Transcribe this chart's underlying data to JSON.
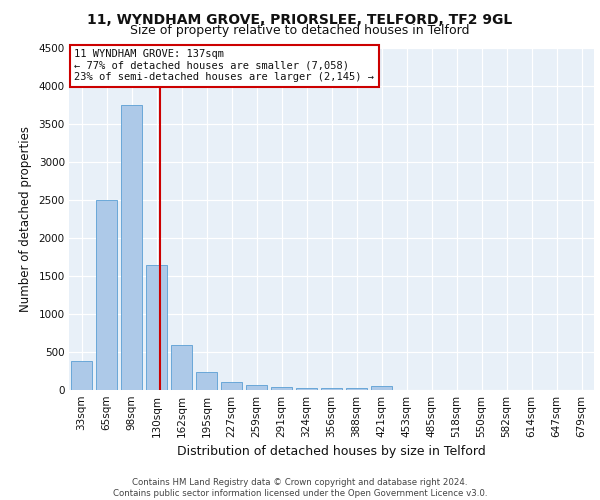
{
  "title1": "11, WYNDHAM GROVE, PRIORSLEE, TELFORD, TF2 9GL",
  "title2": "Size of property relative to detached houses in Telford",
  "xlabel": "Distribution of detached houses by size in Telford",
  "ylabel": "Number of detached properties",
  "categories": [
    "33sqm",
    "65sqm",
    "98sqm",
    "130sqm",
    "162sqm",
    "195sqm",
    "227sqm",
    "259sqm",
    "291sqm",
    "324sqm",
    "356sqm",
    "388sqm",
    "421sqm",
    "453sqm",
    "485sqm",
    "518sqm",
    "550sqm",
    "582sqm",
    "614sqm",
    "647sqm",
    "679sqm"
  ],
  "values": [
    375,
    2500,
    3750,
    1640,
    590,
    230,
    110,
    65,
    35,
    30,
    30,
    30,
    50,
    0,
    0,
    0,
    0,
    0,
    0,
    0,
    0
  ],
  "bar_color": "#adc9e8",
  "bar_edgecolor": "#5a9fd4",
  "ylim": [
    0,
    4500
  ],
  "yticks": [
    0,
    500,
    1000,
    1500,
    2000,
    2500,
    3000,
    3500,
    4000,
    4500
  ],
  "vline_x": 3.12,
  "vline_color": "#cc0000",
  "annotation_text": "11 WYNDHAM GROVE: 137sqm\n← 77% of detached houses are smaller (7,058)\n23% of semi-detached houses are larger (2,145) →",
  "annotation_box_color": "#ffffff",
  "annotation_box_edgecolor": "#cc0000",
  "footer": "Contains HM Land Registry data © Crown copyright and database right 2024.\nContains public sector information licensed under the Open Government Licence v3.0.",
  "bg_color": "#e8f0f8",
  "grid_color": "#ffffff",
  "title_fontsize": 10,
  "subtitle_fontsize": 9,
  "tick_fontsize": 7.5,
  "ylabel_fontsize": 8.5,
  "xlabel_fontsize": 9
}
